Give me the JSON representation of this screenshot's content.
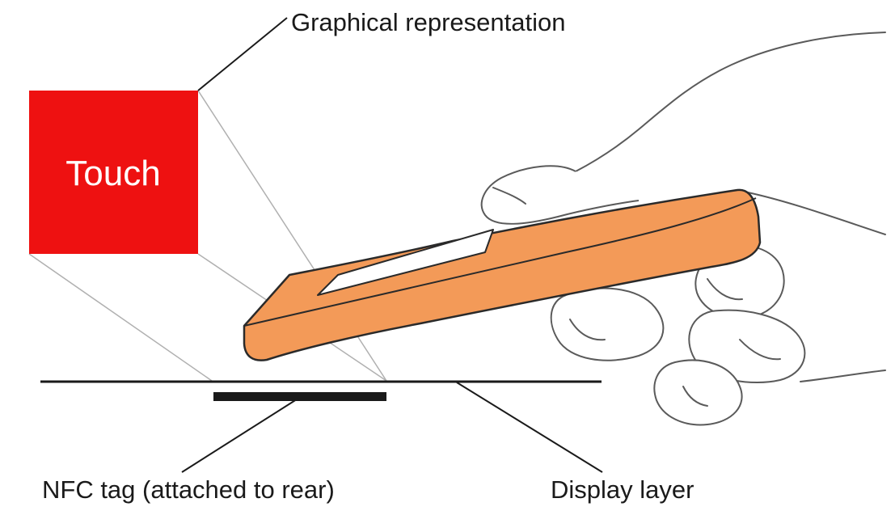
{
  "labels": {
    "graphical_representation": "Graphical representation",
    "touch": "Touch",
    "nfc_tag": "NFC tag (attached to rear)",
    "display_layer": "Display layer"
  },
  "colors": {
    "touch_box": "#ee1111",
    "phone_body": "#f39a58",
    "phone_outline": "#2a2a2a",
    "ink": "#1a1a1a"
  },
  "icons": {
    "hand": "hand-holding-phone-icon",
    "phone": "mobile-phone-icon"
  }
}
